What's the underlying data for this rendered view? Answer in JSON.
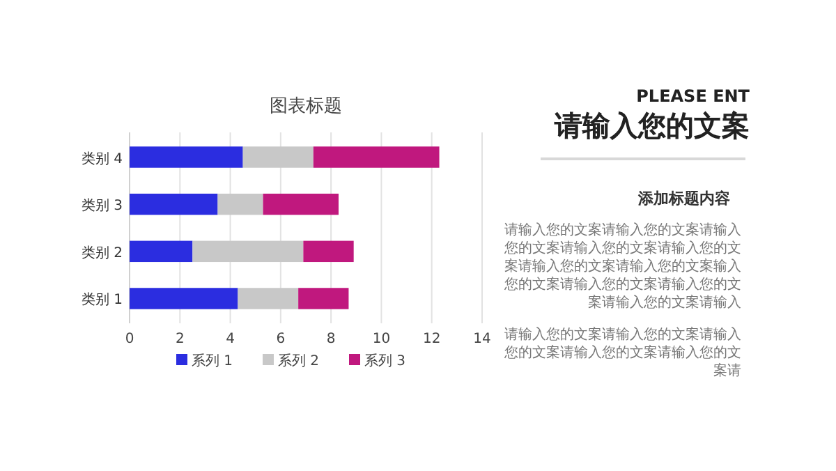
{
  "chart_data": [
    {
      "type": "bar",
      "title": "图表标题",
      "orientation": "horizontal",
      "stacked": true,
      "categories": [
        "类别 4",
        "类别 3",
        "类别 2",
        "类别 1"
      ],
      "series": [
        {
          "name": "系列 1",
          "color": "#2b2de0",
          "values": [
            4.5,
            3.5,
            2.5,
            4.3
          ]
        },
        {
          "name": "系列 2",
          "color": "#c8c8c8",
          "values": [
            2.8,
            1.8,
            4.4,
            2.4
          ]
        },
        {
          "name": "系列 3",
          "color": "#c0187e",
          "values": [
            5.0,
            3.0,
            2.0,
            2.0
          ]
        }
      ],
      "xlim": [
        0,
        14
      ],
      "xticks": [
        0,
        2,
        4,
        6,
        8,
        10,
        12,
        14
      ],
      "grid": "x",
      "legend": "bottom"
    },
    {
      "type": "other",
      "subtitle": "PLEASE ENT",
      "title": "请输入您的文案",
      "annotations": [
        "添加标题内容",
        "请输入您的文案请输入您的文案请输入您的文案请输入您的文案请输入您的文案请输入您的文案请输入您的文案输入您的文案请输入您的文案请输入您的文案请输入您的文案请输入",
        "请输入您的文案请输入您的文案请输入您的文案请输入您的文案请输入您的文案请"
      ]
    }
  ]
}
